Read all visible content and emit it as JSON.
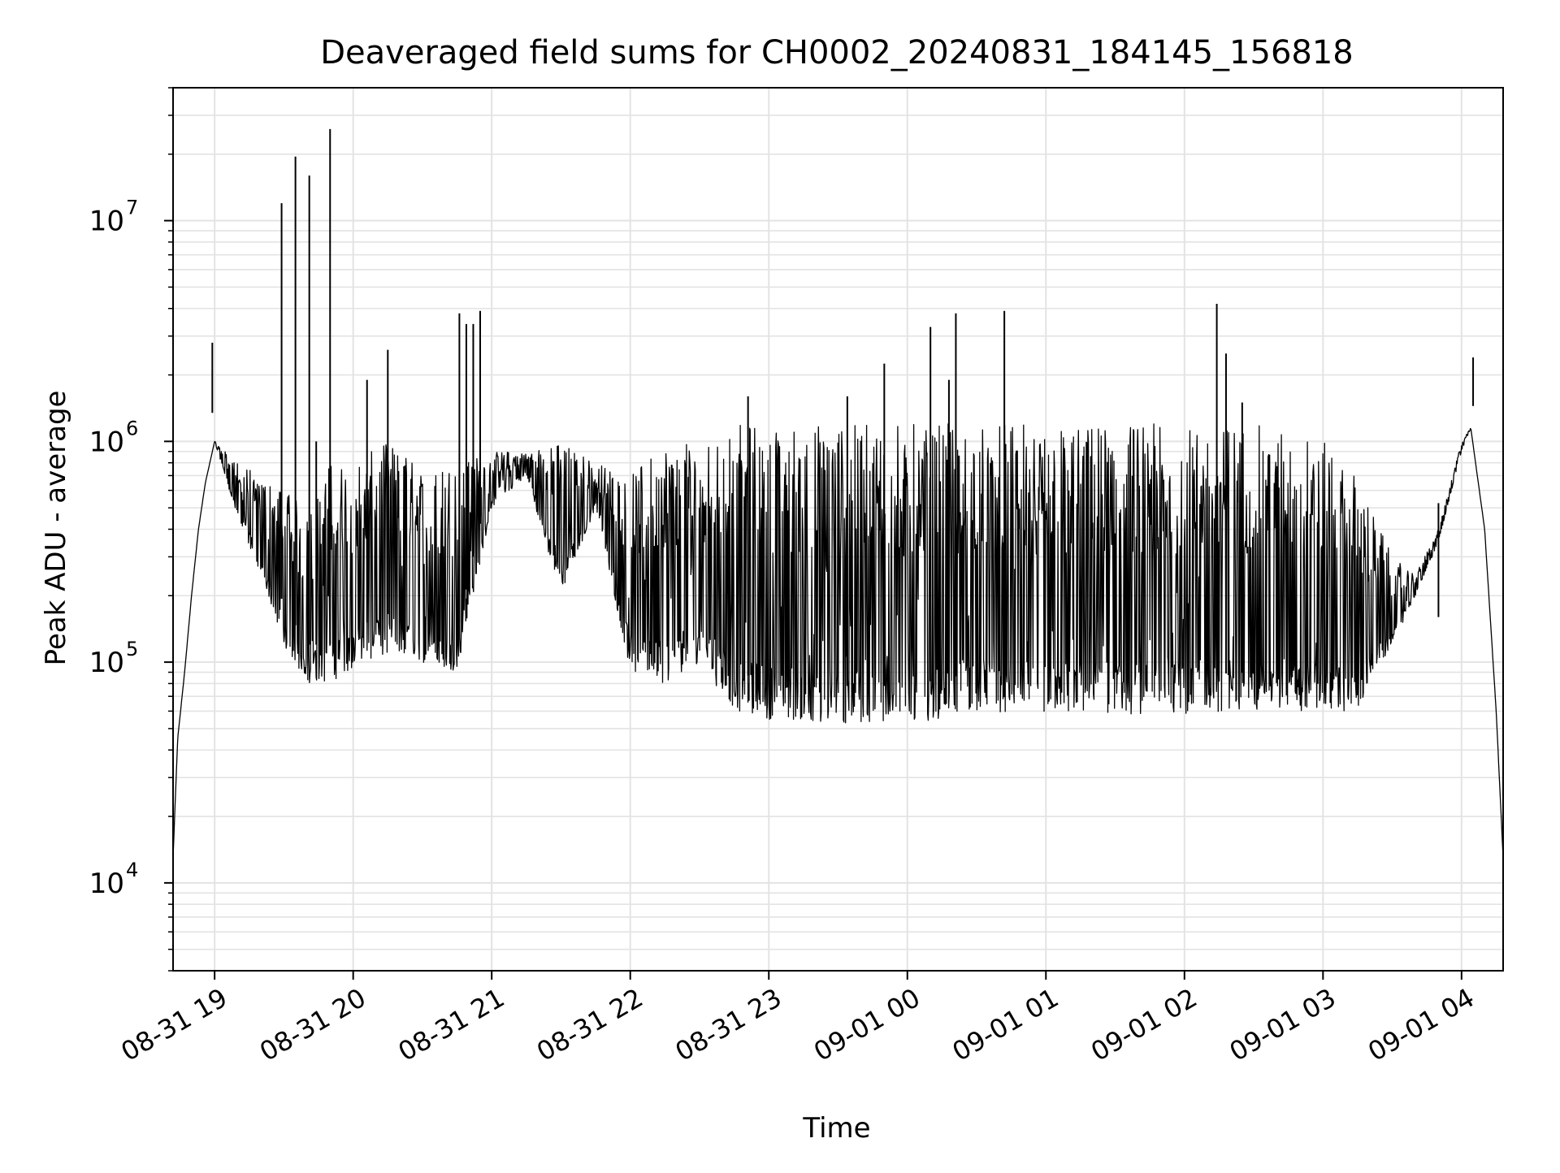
{
  "chart_data": {
    "type": "line",
    "title": "Deaveraged field sums for CH0002_20240831_184145_156818",
    "xlabel": "Time",
    "ylabel": "Peak ADU - average",
    "y_scale": "log",
    "grid": true,
    "grid_minor": true,
    "line_color": "#000000",
    "grid_color": "#e3e3e3",
    "xlim": [
      "2024-08-31 18:42",
      "2024-09-01 04:18"
    ],
    "ylim": [
      4000,
      40000000
    ],
    "x_tick_values": [
      "2024-08-31 19:00",
      "2024-08-31 20:00",
      "2024-08-31 21:00",
      "2024-08-31 22:00",
      "2024-08-31 23:00",
      "2024-09-01 00:00",
      "2024-09-01 01:00",
      "2024-09-01 02:00",
      "2024-09-01 03:00",
      "2024-09-01 04:00"
    ],
    "x_tick_labels": [
      "08-31 19",
      "08-31 20",
      "08-31 21",
      "08-31 22",
      "08-31 23",
      "09-01 00",
      "09-01 01",
      "09-01 02",
      "09-01 03",
      "09-01 04"
    ],
    "y_ticks": [
      {
        "value": 10000,
        "base": "10",
        "exp": "4"
      },
      {
        "value": 100000,
        "base": "10",
        "exp": "5"
      },
      {
        "value": 1000000,
        "base": "10",
        "exp": "6"
      },
      {
        "value": 10000000,
        "base": "10",
        "exp": "7"
      }
    ],
    "envelope": {
      "x": [
        "2024-08-31 18:42",
        "2024-08-31 18:44",
        "2024-08-31 18:47",
        "2024-08-31 18:50",
        "2024-08-31 18:53",
        "2024-08-31 18:56",
        "2024-08-31 19:00",
        "2024-08-31 19:10",
        "2024-08-31 19:20",
        "2024-08-31 19:30",
        "2024-08-31 19:40",
        "2024-08-31 19:50",
        "2024-08-31 20:00",
        "2024-08-31 20:15",
        "2024-08-31 20:30",
        "2024-08-31 20:45",
        "2024-08-31 21:00",
        "2024-08-31 21:15",
        "2024-08-31 21:30",
        "2024-08-31 21:45",
        "2024-08-31 22:00",
        "2024-08-31 22:15",
        "2024-08-31 22:30",
        "2024-08-31 22:45",
        "2024-08-31 23:00",
        "2024-08-31 23:30",
        "2024-09-01 00:00",
        "2024-09-01 00:30",
        "2024-09-01 01:00",
        "2024-09-01 01:30",
        "2024-09-01 02:00",
        "2024-09-01 02:30",
        "2024-09-01 03:00",
        "2024-09-01 03:15",
        "2024-09-01 03:30",
        "2024-09-01 03:40",
        "2024-09-01 03:50",
        "2024-09-01 04:00",
        "2024-09-01 04:04",
        "2024-09-01 04:10",
        "2024-09-01 04:15",
        "2024-09-01 04:18"
      ],
      "low": [
        13000,
        45000,
        90000,
        200000,
        400000,
        650000,
        1000000,
        450000,
        250000,
        120000,
        80000,
        80000,
        95000,
        110000,
        100000,
        90000,
        500000,
        700000,
        200000,
        500000,
        90000,
        80000,
        100000,
        60000,
        55000,
        52000,
        52000,
        60000,
        58000,
        58000,
        58000,
        60000,
        60000,
        60000,
        120000,
        200000,
        350000,
        900000,
        1150000,
        400000,
        60000,
        13000
      ],
      "high": [
        13000,
        45000,
        90000,
        200000,
        400000,
        650000,
        1000000,
        800000,
        700000,
        600000,
        500000,
        800000,
        800000,
        1000000,
        800000,
        800000,
        900000,
        900000,
        1000000,
        800000,
        700000,
        1000000,
        1000000,
        1200000,
        1200000,
        1200000,
        1200000,
        1200000,
        1200000,
        1200000,
        1200000,
        1200000,
        1000000,
        700000,
        300000,
        250000,
        400000,
        1000000,
        1150000,
        400000,
        60000,
        13000
      ]
    },
    "spikes": [
      {
        "x": "2024-08-31 18:59",
        "y": 2800000
      },
      {
        "x": "2024-08-31 19:29",
        "y": 12000000
      },
      {
        "x": "2024-08-31 19:35",
        "y": 19500000
      },
      {
        "x": "2024-08-31 19:41",
        "y": 16000000
      },
      {
        "x": "2024-08-31 19:44",
        "y": 1000000
      },
      {
        "x": "2024-08-31 19:50",
        "y": 26000000
      },
      {
        "x": "2024-08-31 20:06",
        "y": 1900000
      },
      {
        "x": "2024-08-31 20:15",
        "y": 2600000
      },
      {
        "x": "2024-08-31 20:46",
        "y": 3800000
      },
      {
        "x": "2024-08-31 20:49",
        "y": 3400000
      },
      {
        "x": "2024-08-31 20:52",
        "y": 3400000
      },
      {
        "x": "2024-08-31 20:55",
        "y": 3900000
      },
      {
        "x": "2024-08-31 22:51",
        "y": 1600000
      },
      {
        "x": "2024-08-31 23:34",
        "y": 1600000
      },
      {
        "x": "2024-08-31 23:50",
        "y": 2250000
      },
      {
        "x": "2024-09-01 00:10",
        "y": 3300000
      },
      {
        "x": "2024-09-01 00:18",
        "y": 1900000
      },
      {
        "x": "2024-09-01 00:21",
        "y": 3800000
      },
      {
        "x": "2024-09-01 00:42",
        "y": 3900000
      },
      {
        "x": "2024-09-01 02:14",
        "y": 4200000
      },
      {
        "x": "2024-09-01 02:18",
        "y": 2500000
      },
      {
        "x": "2024-09-01 02:25",
        "y": 1500000
      },
      {
        "x": "2024-09-01 03:50",
        "y": 160000
      },
      {
        "x": "2024-09-01 04:05",
        "y": 2400000
      }
    ]
  }
}
